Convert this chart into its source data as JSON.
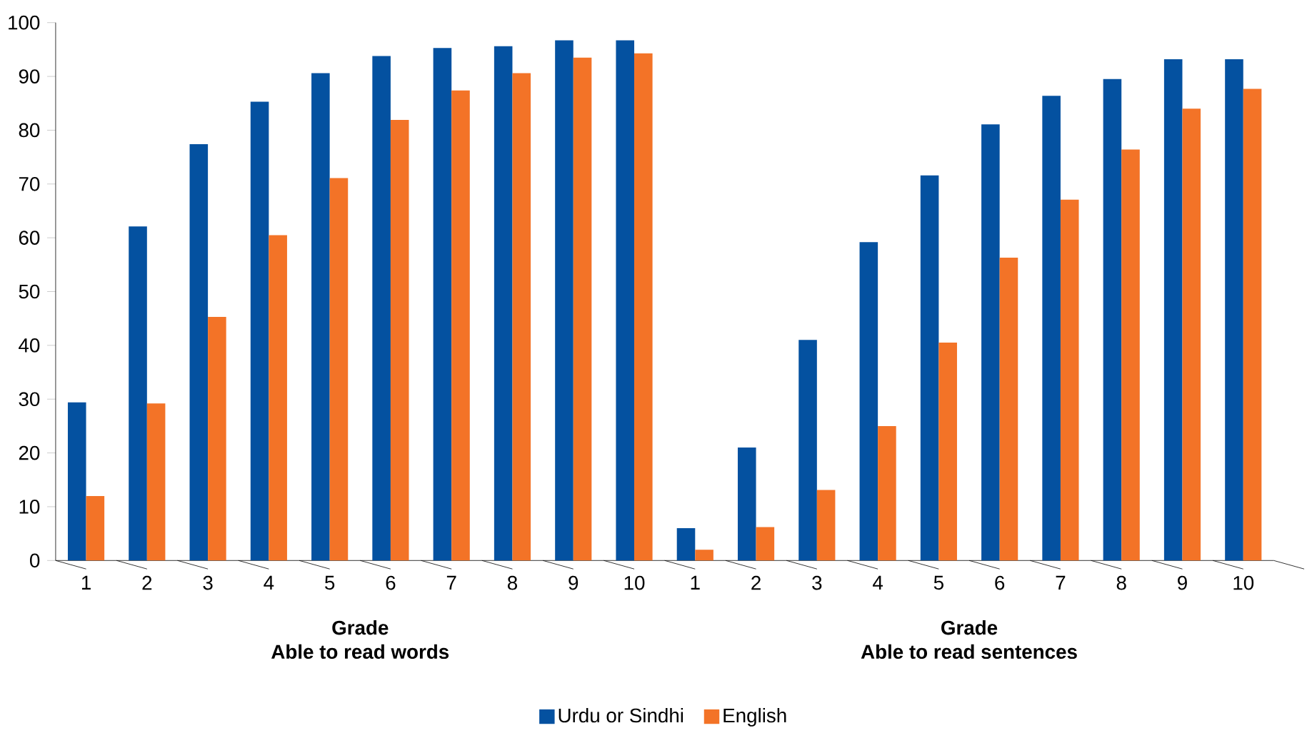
{
  "chart_data": {
    "type": "bar",
    "categories": [
      "1",
      "2",
      "3",
      "4",
      "5",
      "6",
      "7",
      "8",
      "9",
      "10",
      "1",
      "2",
      "3",
      "4",
      "5",
      "6",
      "7",
      "8",
      "9",
      "10"
    ],
    "series": [
      {
        "name": "Urdu or Sindhi",
        "color": "#0451a0",
        "values": [
          29.4,
          62.1,
          77.4,
          85.3,
          90.6,
          93.8,
          95.3,
          95.6,
          96.7,
          96.7,
          6.0,
          21.0,
          41.0,
          59.2,
          71.6,
          81.1,
          86.4,
          89.5,
          93.2,
          93.2
        ]
      },
      {
        "name": "English",
        "color": "#f37327",
        "values": [
          12.0,
          29.2,
          45.3,
          60.5,
          71.1,
          81.9,
          87.4,
          90.6,
          93.5,
          94.3,
          2.0,
          6.2,
          13.1,
          25.0,
          40.5,
          56.3,
          67.1,
          76.4,
          84.0,
          87.7
        ]
      }
    ],
    "annotations": [
      "Grade",
      "Able to read words",
      "Grade",
      "Able to read sentences"
    ],
    "ylim": [
      0,
      100
    ],
    "yticks": [
      0,
      10,
      20,
      30,
      40,
      50,
      60,
      70,
      80,
      90,
      100
    ],
    "legend": "bottom"
  }
}
